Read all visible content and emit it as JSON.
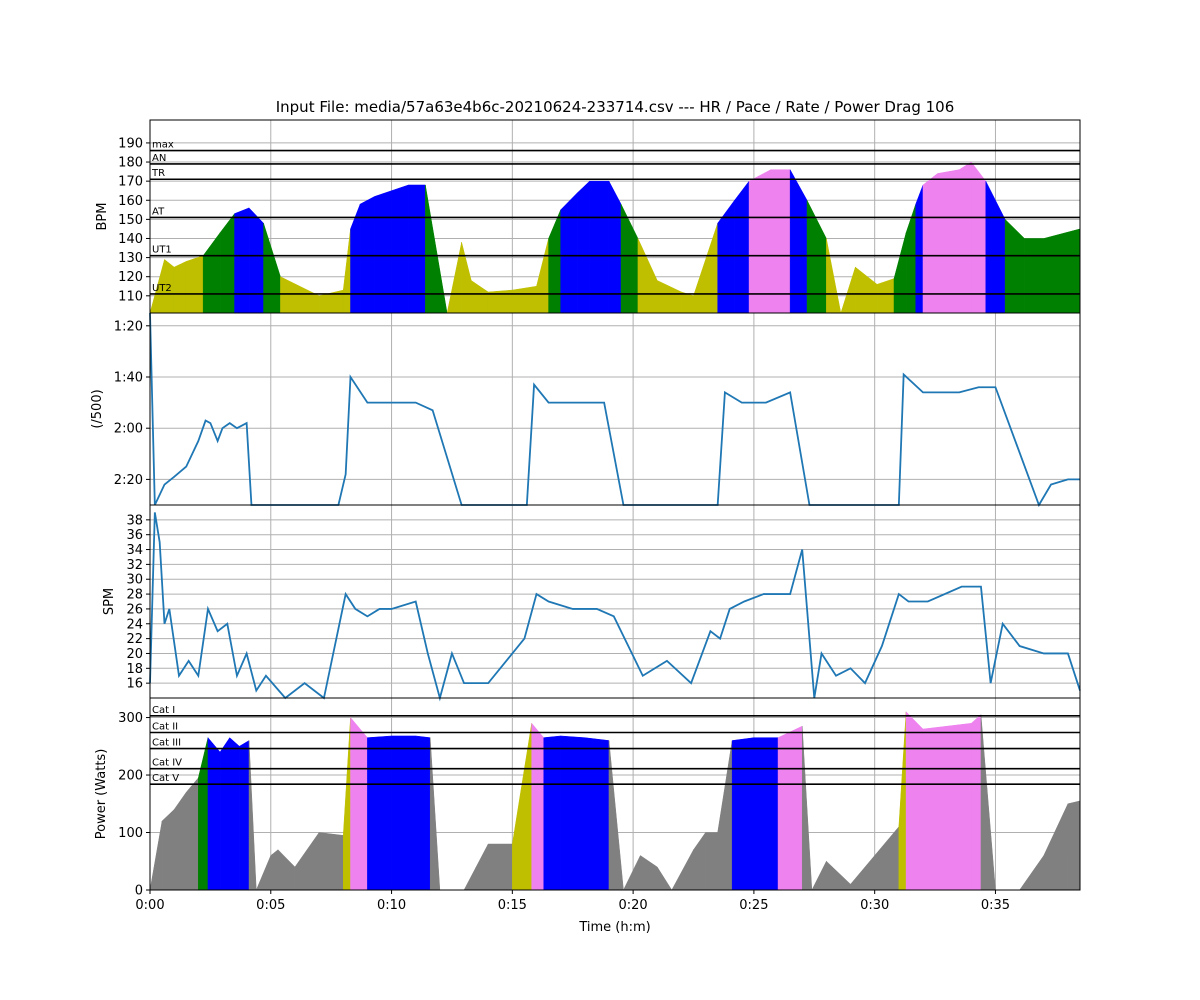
{
  "title": "Input File:  media/57a63e4b6c-20210624-233714.csv --- HR / Pace / Rate / Power Drag 106",
  "colors": {
    "ut2": "#bfbf00",
    "ut1": "#008000",
    "at": "#0000ff",
    "tr": "#ee82ee",
    "an": "#ff0000",
    "other": "#808080",
    "line": "#1f77b4",
    "grid": "#b0b0b0"
  },
  "chart_data": [
    {
      "type": "area",
      "panel": "hr",
      "ylabel": "BPM",
      "ylim": [
        101,
        202
      ],
      "yticks": [
        110,
        120,
        130,
        140,
        150,
        160,
        170,
        180,
        190
      ],
      "zones": [
        {
          "label": "max",
          "y": 186
        },
        {
          "label": "AN",
          "y": 179
        },
        {
          "label": "TR",
          "y": 171
        },
        {
          "label": "AT",
          "y": 151
        },
        {
          "label": "UT1",
          "y": 131
        },
        {
          "label": "UT2",
          "y": 111
        }
      ],
      "x_minutes": [
        0,
        0.6,
        1,
        1.5,
        2.2,
        2.9,
        3.5,
        4.1,
        4.7,
        5.4,
        7,
        8,
        8.3,
        8.7,
        9.3,
        10,
        10.7,
        11.4,
        12.3,
        12.9,
        13.3,
        14,
        15,
        16,
        16.5,
        17,
        17.7,
        18.2,
        19,
        19.5,
        20.2,
        21,
        22,
        22.5,
        23.5,
        24.2,
        24.8,
        25.7,
        26.5,
        27.2,
        28,
        28.6,
        29.2,
        30.1,
        30.8,
        31.3,
        31.7,
        32,
        32.6,
        33.5,
        34,
        34.6,
        35.4,
        36.2,
        37,
        38.5
      ],
      "values": [
        101,
        129,
        125,
        128,
        131,
        143,
        153,
        156,
        148,
        120,
        110,
        113,
        145,
        158,
        162,
        165,
        168,
        168,
        101,
        138,
        118,
        112,
        113,
        115,
        140,
        155,
        164,
        170,
        170,
        158,
        140,
        118,
        112,
        110,
        148,
        160,
        170,
        176,
        176,
        160,
        140,
        101,
        125,
        116,
        119,
        143,
        158,
        168,
        174,
        176,
        180,
        170,
        150,
        140,
        140,
        145
      ]
    },
    {
      "type": "line",
      "panel": "pace",
      "ylabel": "(/500)",
      "ylim": [
        150,
        75
      ],
      "yticks": [
        "1:20",
        "1:40",
        "2:00",
        "2:20"
      ],
      "x_minutes": [
        0,
        0.2,
        0.6,
        1,
        1.5,
        2,
        2.3,
        2.5,
        2.8,
        3,
        3.3,
        3.6,
        4,
        4.2,
        7.8,
        8.1,
        8.3,
        9,
        10,
        11,
        11.7,
        12.9,
        15.6,
        15.9,
        16.5,
        17.5,
        18.8,
        19.6,
        23.5,
        23.8,
        24.5,
        25.5,
        26.5,
        27.3,
        31,
        31.2,
        32,
        33.5,
        34.3,
        35,
        36.8,
        37.3,
        38,
        38.5
      ],
      "values": [
        75,
        150,
        142,
        139,
        135,
        125,
        117,
        118,
        125,
        120,
        118,
        120,
        118,
        150,
        150,
        138,
        100,
        110,
        110,
        110,
        113,
        150,
        150,
        103,
        110,
        110,
        110,
        150,
        150,
        106,
        110,
        110,
        106,
        150,
        150,
        99,
        106,
        106,
        104,
        104,
        150,
        142,
        140,
        140
      ]
    },
    {
      "type": "line",
      "panel": "spm",
      "ylabel": "SPM",
      "ylim": [
        14,
        40
      ],
      "yticks": [
        16,
        18,
        20,
        22,
        24,
        26,
        28,
        30,
        32,
        34,
        36,
        38
      ],
      "x_minutes": [
        0,
        0.2,
        0.4,
        0.6,
        0.8,
        1.2,
        1.6,
        2,
        2.4,
        2.8,
        3.2,
        3.6,
        4,
        4.4,
        4.8,
        5.6,
        6.4,
        7.2,
        8.1,
        8.5,
        9,
        9.5,
        10,
        11,
        11.5,
        12,
        12.5,
        13,
        14,
        15,
        15.5,
        16,
        16.5,
        17.5,
        18.5,
        19.2,
        19.8,
        20.4,
        21.4,
        22.4,
        23.2,
        23.6,
        24,
        24.6,
        25.4,
        26.5,
        27,
        27.5,
        27.8,
        28.4,
        29,
        29.6,
        30.3,
        31,
        31.4,
        32.2,
        33.6,
        34.4,
        34.8,
        35.3,
        36,
        37,
        38,
        38.5
      ],
      "values": [
        16,
        39,
        35,
        24,
        26,
        17,
        19,
        17,
        26,
        23,
        24,
        17,
        20,
        15,
        17,
        14,
        16,
        14,
        28,
        26,
        25,
        26,
        26,
        27,
        20,
        14,
        20,
        16,
        16,
        20,
        22,
        28,
        27,
        26,
        26,
        25,
        21,
        17,
        19,
        16,
        23,
        22,
        26,
        27,
        28,
        28,
        34,
        14,
        20,
        17,
        18,
        16,
        21,
        28,
        27,
        27,
        29,
        29,
        16,
        24,
        21,
        20,
        20,
        15
      ]
    },
    {
      "type": "area",
      "panel": "power",
      "ylabel": "Power (Watts)",
      "xlabel": "Time (h:m)",
      "ylim": [
        0,
        334
      ],
      "yticks": [
        0,
        100,
        200,
        300
      ],
      "xlim": [
        0,
        38.5
      ],
      "xticks": [
        "0:00",
        "0:05",
        "0:10",
        "0:15",
        "0:20",
        "0:25",
        "0:30",
        "0:35"
      ],
      "zones": [
        {
          "label": "Cat I",
          "y": 303
        },
        {
          "label": "Cat II",
          "y": 274
        },
        {
          "label": "Cat III",
          "y": 246
        },
        {
          "label": "Cat IV",
          "y": 211
        },
        {
          "label": "Cat V",
          "y": 184
        }
      ],
      "x_minutes": [
        0,
        0.5,
        1,
        1.5,
        2,
        2.4,
        2.9,
        3.3,
        3.7,
        4.1,
        4.4,
        5,
        5.3,
        6,
        7,
        8,
        8.3,
        9,
        10,
        11,
        11.6,
        12,
        13,
        13.5,
        14,
        15,
        15.8,
        16.3,
        17,
        18,
        19,
        19.6,
        20.3,
        21,
        21.6,
        22.5,
        23,
        23.5,
        24.1,
        25,
        26,
        27,
        27.4,
        28,
        29,
        30,
        31,
        31.3,
        32,
        33,
        34,
        34.4,
        35,
        36,
        37,
        38,
        38.5
      ],
      "values": [
        0,
        120,
        140,
        170,
        195,
        265,
        240,
        265,
        250,
        260,
        0,
        60,
        70,
        40,
        100,
        95,
        300,
        265,
        268,
        268,
        265,
        0,
        0,
        40,
        80,
        80,
        290,
        265,
        268,
        265,
        260,
        0,
        60,
        40,
        0,
        70,
        100,
        100,
        260,
        265,
        265,
        285,
        0,
        50,
        10,
        60,
        110,
        310,
        280,
        285,
        290,
        305,
        0,
        0,
        60,
        150,
        155
      ]
    }
  ]
}
